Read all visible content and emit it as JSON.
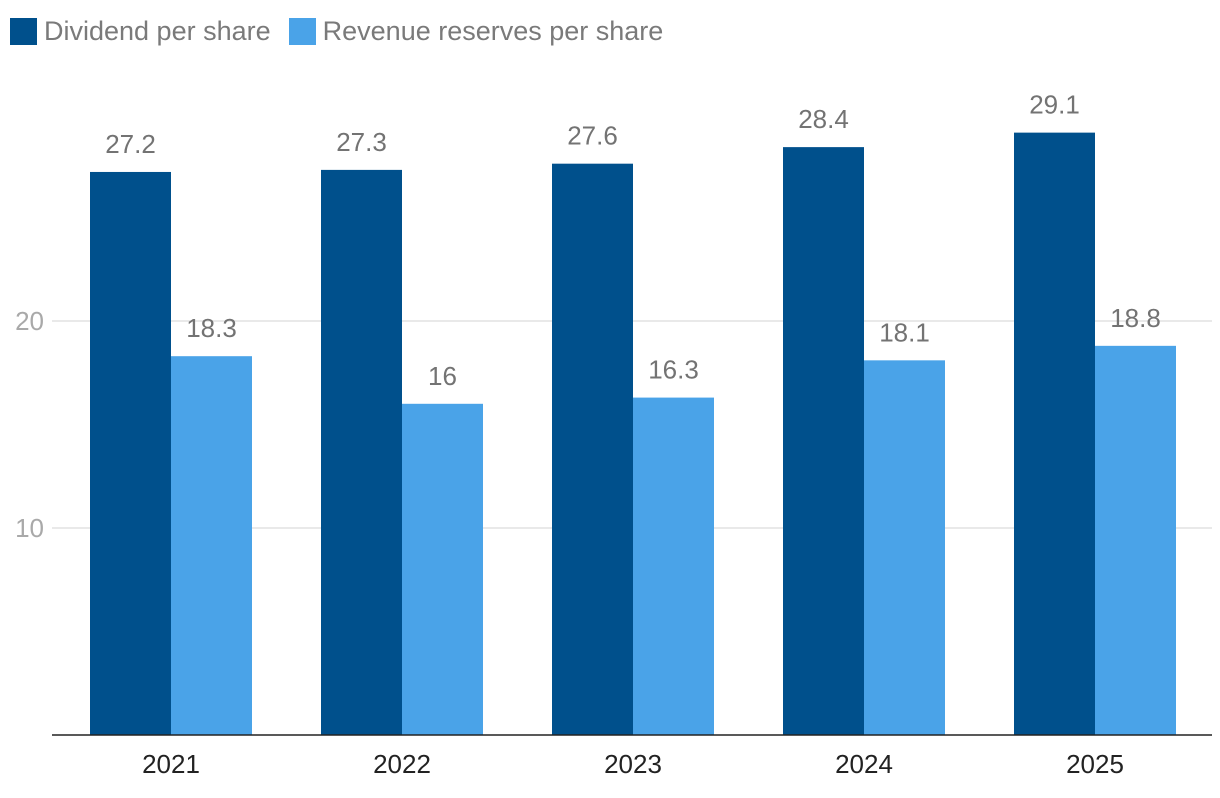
{
  "legend": {
    "items": [
      {
        "label": "Dividend per share",
        "color": "#00508c"
      },
      {
        "label": "Revenue reserves per share",
        "color": "#4aa3e8"
      }
    ]
  },
  "chart_data": {
    "type": "bar",
    "categories": [
      "2021",
      "2022",
      "2023",
      "2024",
      "2025"
    ],
    "series": [
      {
        "name": "Dividend per share",
        "values": [
          27.2,
          27.3,
          27.6,
          28.4,
          29.1
        ],
        "labels": [
          "27.2",
          "27.3",
          "27.6",
          "28.4",
          "29.1"
        ],
        "color": "#00508c"
      },
      {
        "name": "Revenue reserves per share",
        "values": [
          18.3,
          16,
          16.3,
          18.1,
          18.8
        ],
        "labels": [
          "18.3",
          "16",
          "16.3",
          "18.1",
          "18.8"
        ],
        "color": "#4aa3e8"
      }
    ],
    "yticks": [
      10,
      20
    ],
    "ylim": [
      0,
      30
    ],
    "grid": true,
    "legend_position": "top-left",
    "title": "",
    "xlabel": "",
    "ylabel": ""
  }
}
